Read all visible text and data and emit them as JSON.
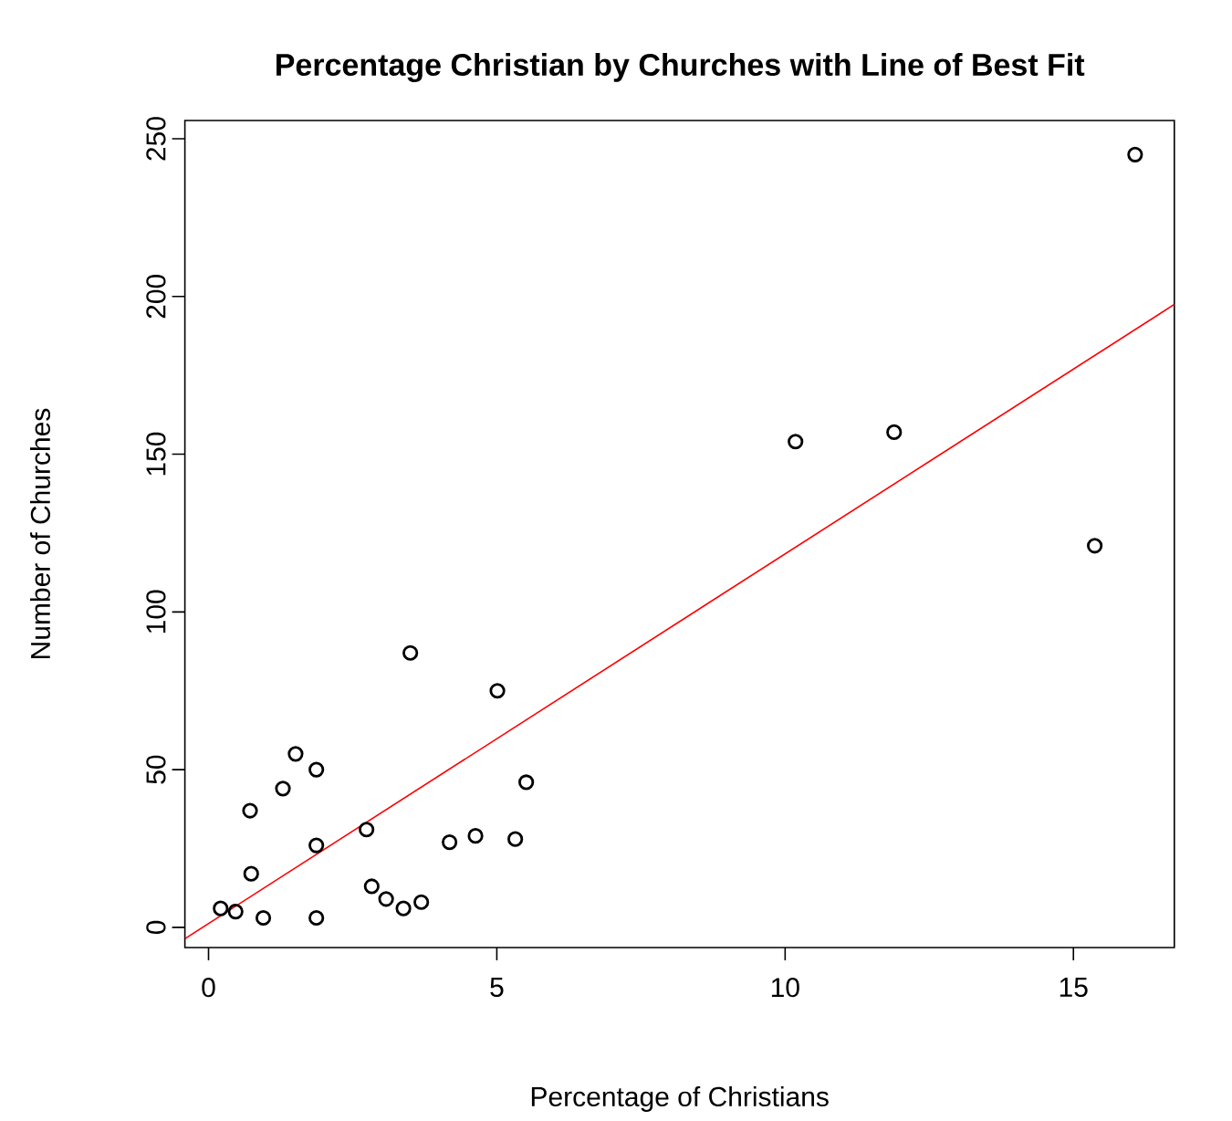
{
  "chart_data": {
    "type": "scatter",
    "title": "Percentage Christian by Churches with Line of Best Fit",
    "xlabel": "Percentage of Christians",
    "ylabel": "Number of Churches",
    "xlim": [
      -0.41,
      16.75
    ],
    "ylim": [
      -6.4,
      255.8
    ],
    "xticks": [
      0,
      5,
      10,
      15
    ],
    "yticks": [
      0,
      50,
      100,
      150,
      200,
      250
    ],
    "series": [
      {
        "marker": "circle",
        "color": "#000000",
        "x": [
          0.21,
          0.47,
          0.95,
          1.87,
          0.74,
          0.72,
          1.29,
          1.51,
          1.87,
          1.87,
          2.74,
          3.5,
          2.83,
          3.08,
          3.38,
          3.69,
          4.18,
          4.63,
          5.01,
          5.32,
          5.51,
          10.18,
          11.89,
          15.37,
          16.07
        ],
        "values": [
          6,
          5,
          3,
          3,
          17,
          37,
          44,
          55,
          50,
          26,
          31,
          87,
          13,
          9,
          6,
          8,
          27,
          29,
          75,
          28,
          46,
          154,
          157,
          121,
          245
        ]
      },
      {
        "type": "line",
        "marker": "none",
        "color": "#ff0000",
        "x": [
          -0.41,
          16.75
        ],
        "values": [
          -3.6,
          197.5
        ]
      }
    ]
  }
}
